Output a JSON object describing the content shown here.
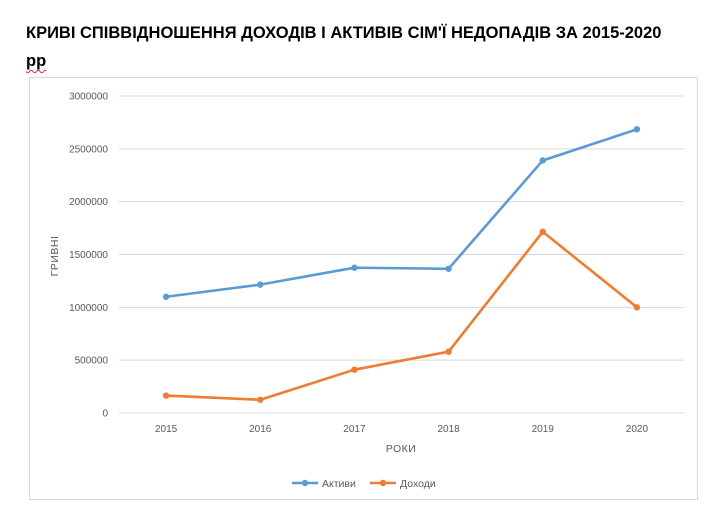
{
  "title_line1": "КРИВІ СПІВВІДНОШЕННЯ ДОХОДІВ І АКТИВІВ СІМ'Ї НЕДОПАДІВ ЗА 2015-2020",
  "title_line2": "рр",
  "chart_data": {
    "type": "line",
    "title": "КРИВІ СПІВВІДНОШЕННЯ ДОХОДІВ І АКТИВІВ СІМ'Ї НЕДОПАДІВ ЗА 2015-2020 рр",
    "xlabel": "РОКИ",
    "ylabel": "ГРИВНІ",
    "categories": [
      "2015",
      "2016",
      "2017",
      "2018",
      "2019",
      "2020"
    ],
    "ylim": [
      0,
      3000000
    ],
    "yticks": [
      0,
      500000,
      1000000,
      1500000,
      2000000,
      2500000,
      3000000
    ],
    "grid": true,
    "legend": "bottom",
    "series": [
      {
        "name": "Активи",
        "color": "#5b9bd5",
        "values": [
          1100000,
          1215000,
          1375000,
          1365000,
          2390000,
          2685000
        ]
      },
      {
        "name": "Доходи",
        "color": "#ed7d31",
        "values": [
          165000,
          125000,
          410000,
          580000,
          1715000,
          1000000
        ]
      }
    ]
  }
}
